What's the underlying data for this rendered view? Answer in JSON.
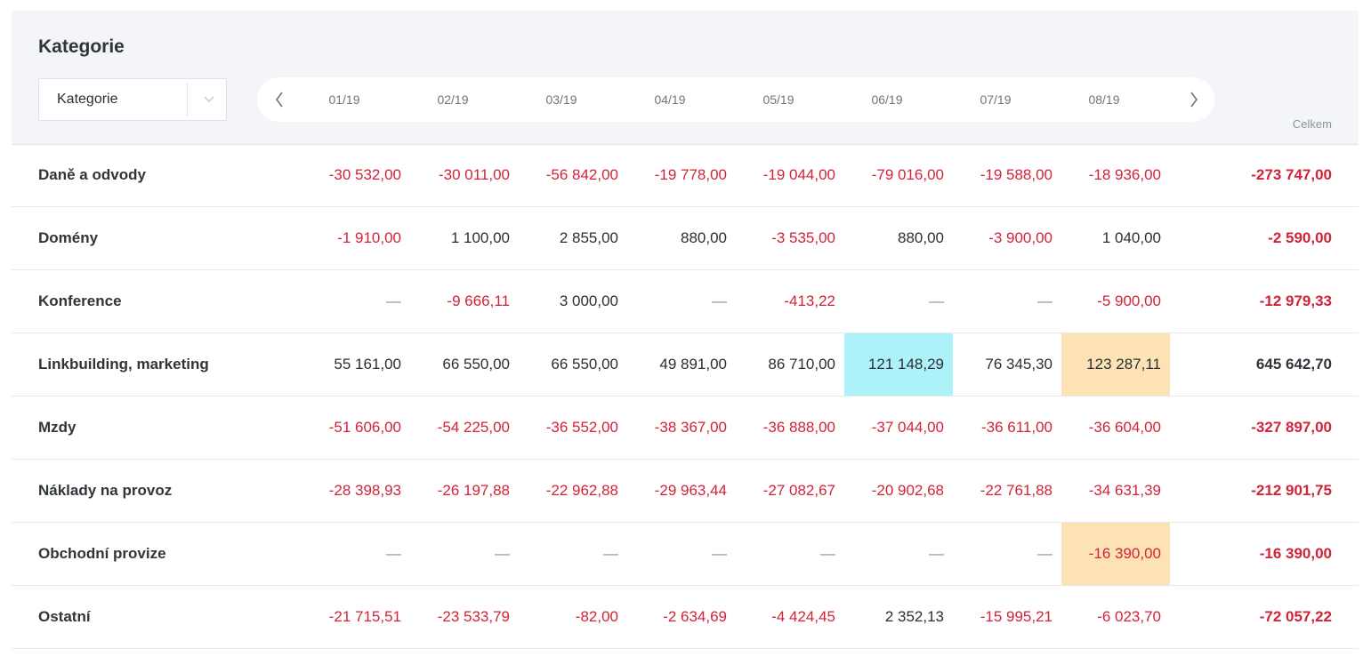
{
  "title": "Kategorie",
  "filter": {
    "value": "Kategorie"
  },
  "months": [
    "01/19",
    "02/19",
    "03/19",
    "04/19",
    "05/19",
    "06/19",
    "07/19",
    "08/19"
  ],
  "total_label": "Celkem",
  "colors": {
    "negative": "#d22338",
    "highlight_cyan": "#aef2f9",
    "highlight_orange": "#fde2b6",
    "header_bg": "#f4f5f9"
  },
  "icons": {
    "prev": "chevron-left-icon",
    "next": "chevron-right-icon",
    "dropdown": "chevron-down-icon"
  },
  "rows": [
    {
      "label": "Daně a odvody",
      "values": [
        "-30 532,00",
        "-30 011,00",
        "-56 842,00",
        "-19 778,00",
        "-19 044,00",
        "-79 016,00",
        "-19 588,00",
        "-18 936,00"
      ],
      "total": "-273 747,00",
      "highlights": {}
    },
    {
      "label": "Domény",
      "values": [
        "-1 910,00",
        "1 100,00",
        "2 855,00",
        "880,00",
        "-3 535,00",
        "880,00",
        "-3 900,00",
        "1 040,00"
      ],
      "total": "-2 590,00",
      "highlights": {}
    },
    {
      "label": "Konference",
      "values": [
        "—",
        "-9 666,11",
        "3 000,00",
        "—",
        "-413,22",
        "—",
        "—",
        "-5 900,00"
      ],
      "total": "-12 979,33",
      "highlights": {}
    },
    {
      "label": "Linkbuilding, marketing",
      "values": [
        "55 161,00",
        "66 550,00",
        "66 550,00",
        "49 891,00",
        "86 710,00",
        "121 148,29",
        "76 345,30",
        "123 287,11"
      ],
      "total": "645 642,70",
      "highlights": {
        "5": "cyan",
        "7": "orange"
      }
    },
    {
      "label": "Mzdy",
      "values": [
        "-51 606,00",
        "-54 225,00",
        "-36 552,00",
        "-38 367,00",
        "-36 888,00",
        "-37 044,00",
        "-36 611,00",
        "-36 604,00"
      ],
      "total": "-327 897,00",
      "highlights": {}
    },
    {
      "label": "Náklady na provoz",
      "values": [
        "-28 398,93",
        "-26 197,88",
        "-22 962,88",
        "-29 963,44",
        "-27 082,67",
        "-20 902,68",
        "-22 761,88",
        "-34 631,39"
      ],
      "total": "-212 901,75",
      "highlights": {}
    },
    {
      "label": "Obchodní provize",
      "values": [
        "—",
        "—",
        "—",
        "—",
        "—",
        "—",
        "—",
        "-16 390,00"
      ],
      "total": "-16 390,00",
      "highlights": {
        "7": "orange"
      }
    },
    {
      "label": "Ostatní",
      "values": [
        "-21 715,51",
        "-23 533,79",
        "-82,00",
        "-2 634,69",
        "-4 424,45",
        "2 352,13",
        "-15 995,21",
        "-6 023,70"
      ],
      "total": "-72 057,22",
      "highlights": {}
    }
  ]
}
